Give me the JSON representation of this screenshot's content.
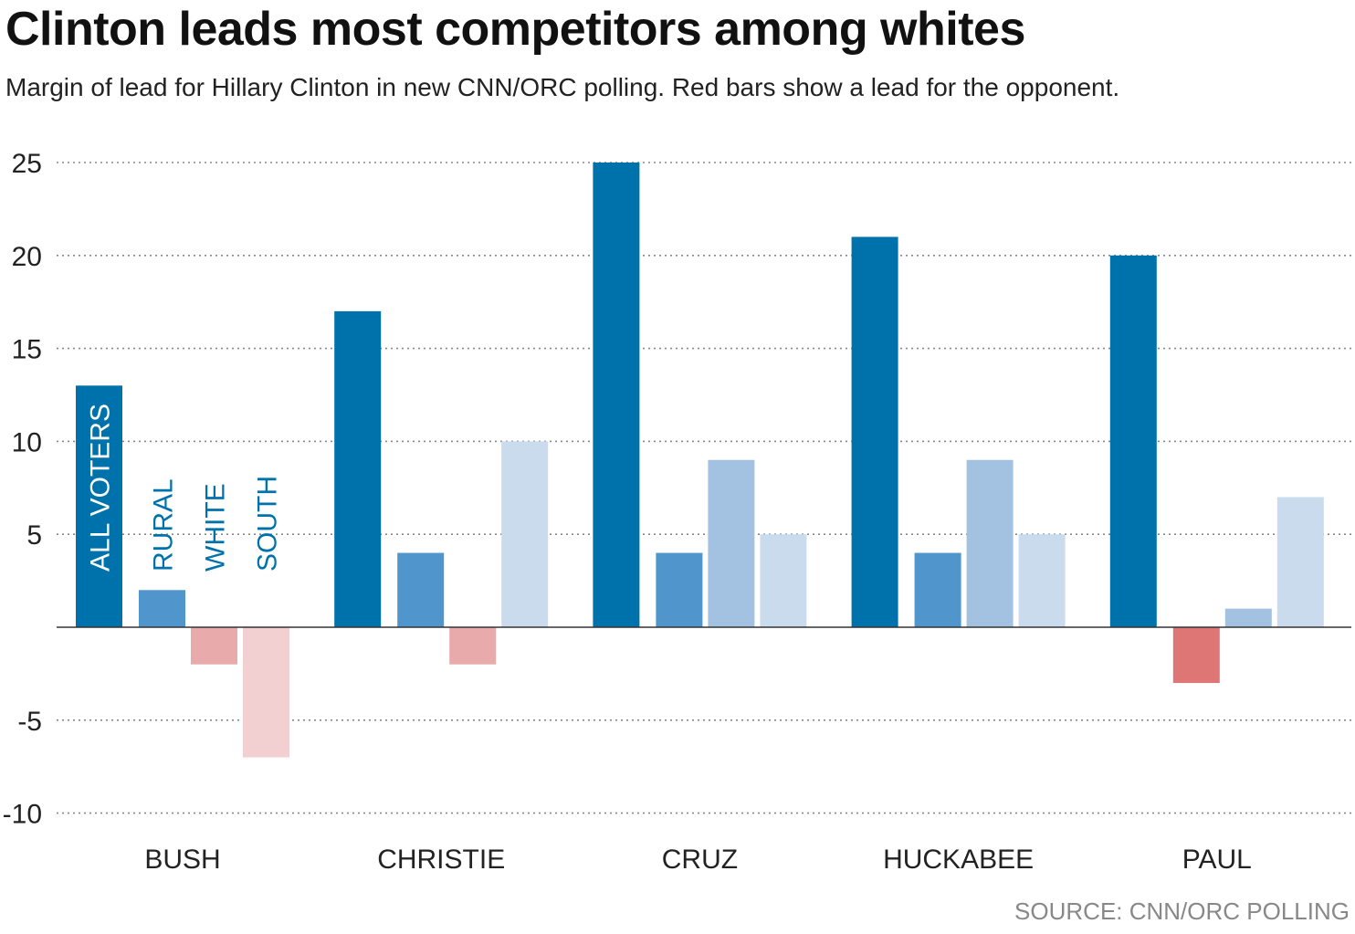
{
  "chart_data": {
    "type": "bar",
    "title": "Clinton leads most competitors among whites",
    "subtitle": "Margin of lead for Hillary Clinton in new CNN/ORC polling. Red bars show a lead for the opponent.",
    "source": "SOURCE: CNN/ORC POLLING",
    "categories": [
      "BUSH",
      "CHRISTIE",
      "CRUZ",
      "HUCKABEE",
      "PAUL"
    ],
    "series": [
      {
        "name": "ALL VOTERS",
        "values": [
          13,
          17,
          25,
          21,
          20
        ],
        "color": "#0072ab",
        "negative_color": "#c94040"
      },
      {
        "name": "RURAL",
        "values": [
          2,
          4,
          4,
          4,
          -3
        ],
        "color": "#5096cc",
        "negative_color": "#de7676"
      },
      {
        "name": "WHITE",
        "values": [
          -2,
          -2,
          9,
          9,
          1
        ],
        "color": "#a3c1e0",
        "negative_color": "#e9aaac"
      },
      {
        "name": "SOUTH",
        "values": [
          -7,
          10,
          5,
          5,
          7
        ],
        "color": "#cbdbee",
        "negative_color": "#f2cfd0"
      }
    ],
    "yticks": [
      25,
      20,
      15,
      10,
      5,
      -5,
      -10
    ],
    "ylim": [
      -10,
      25
    ],
    "grid": true,
    "series_label_color": "#0072ab"
  }
}
